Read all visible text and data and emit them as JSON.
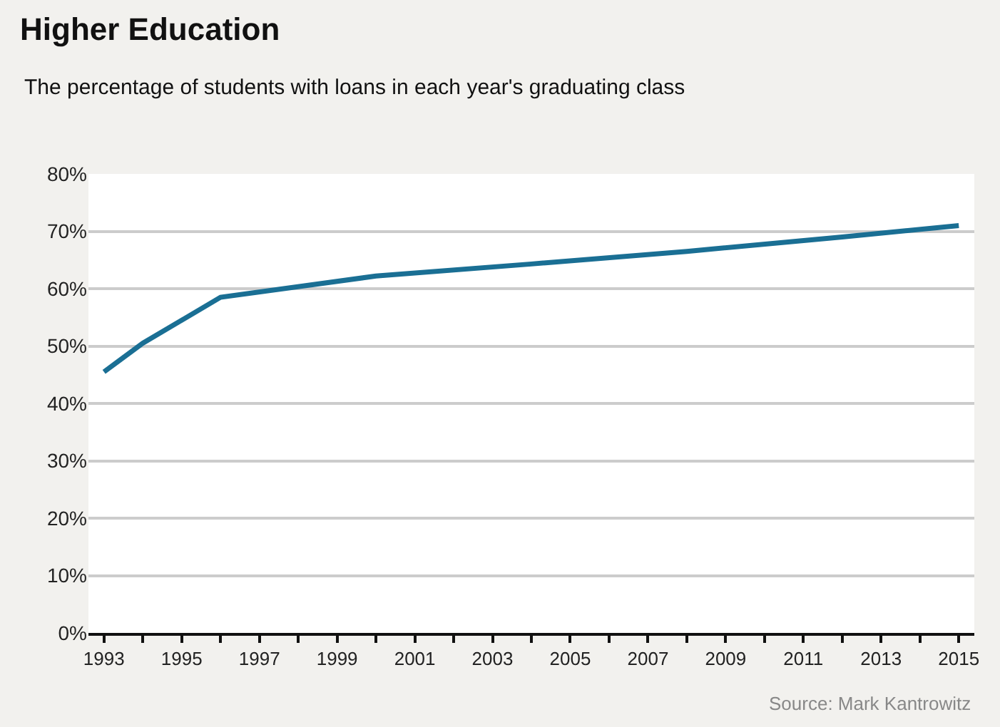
{
  "chart_data": {
    "type": "line",
    "title": "Higher Education",
    "subtitle": "The percentage of students with loans in each year's graduating class",
    "x": [
      1993,
      1994,
      1996,
      2000,
      2004,
      2008,
      2012,
      2015
    ],
    "series": [
      {
        "color": "#1a6f94",
        "values": [
          45.5,
          50.5,
          58.5,
          62.2,
          64.3,
          66.5,
          69.0,
          71.0
        ]
      }
    ],
    "xlim": [
      1992.6,
      2015.4
    ],
    "xticks": [
      1993,
      {
        "value": 1994,
        "label": null
      },
      1995,
      {
        "value": 1996,
        "label": null
      },
      1997,
      {
        "value": 1998,
        "label": null
      },
      1999,
      {
        "value": 2000,
        "label": null
      },
      2001,
      {
        "value": 2002,
        "label": null
      },
      2003,
      {
        "value": 2004,
        "label": null
      },
      2005,
      {
        "value": 2006,
        "label": null
      },
      2007,
      {
        "value": 2008,
        "label": null
      },
      2009,
      {
        "value": 2010,
        "label": null
      },
      2011,
      {
        "value": 2012,
        "label": null
      },
      2013,
      {
        "value": 2014,
        "label": null
      },
      2015
    ],
    "ylim": [
      0,
      80
    ],
    "yticks": [
      {
        "value": 0,
        "label": "0%"
      },
      {
        "value": 10,
        "label": "10%"
      },
      {
        "value": 20,
        "label": "20%"
      },
      {
        "value": 30,
        "label": "30%"
      },
      {
        "value": 40,
        "label": "40%"
      },
      {
        "value": 50,
        "label": "50%"
      },
      {
        "value": 60,
        "label": "60%"
      },
      {
        "value": 70,
        "label": "70%"
      },
      {
        "value": 80,
        "label": "80%"
      }
    ],
    "grid": "y",
    "marker": "none",
    "line_style": "solid",
    "annotations": [
      "Source: Mark Kantrowitz"
    ]
  }
}
